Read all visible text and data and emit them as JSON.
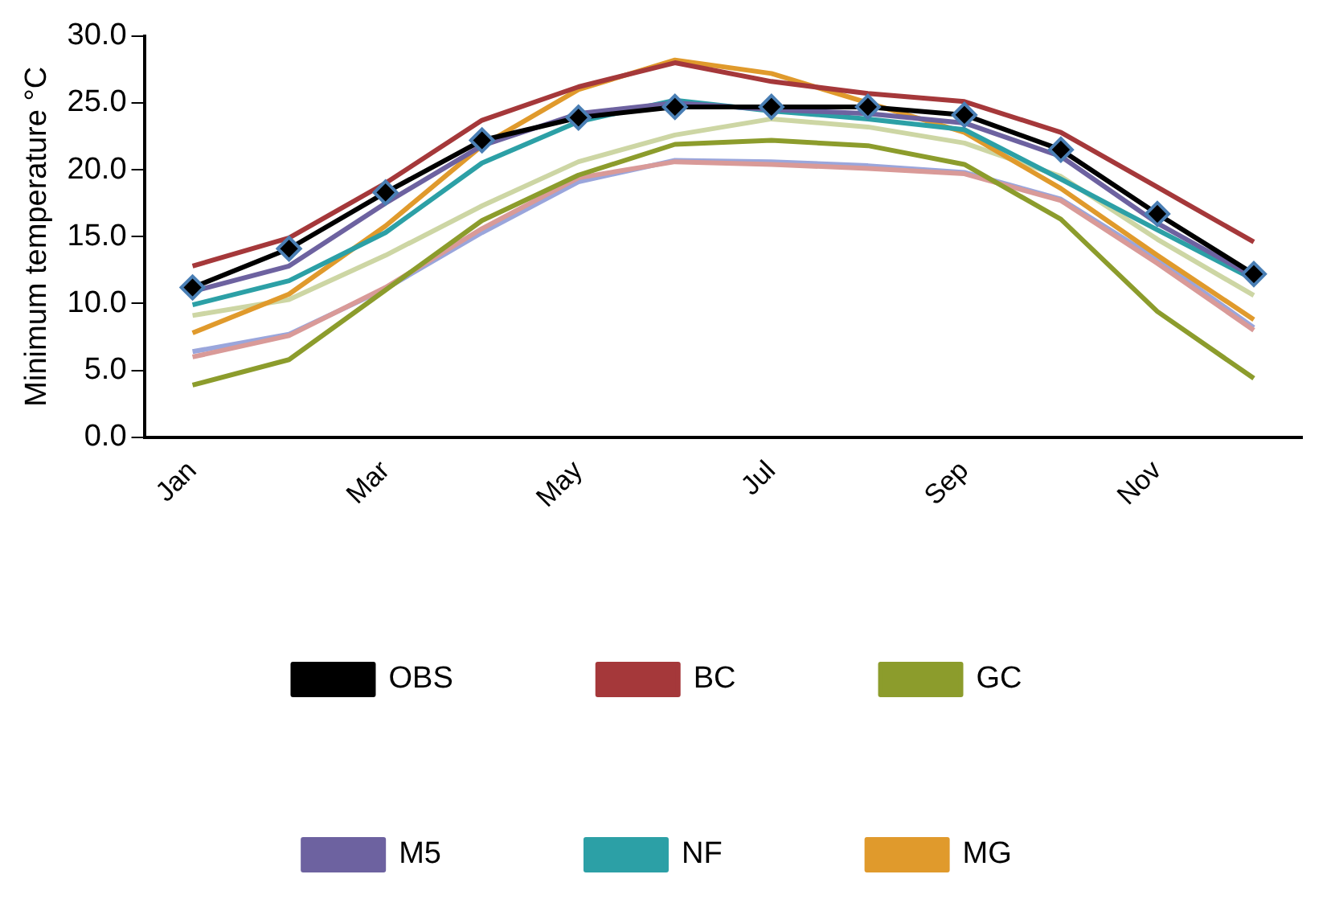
{
  "chart_data": {
    "type": "line",
    "ylabel": "Minimum temperature °C",
    "categories": [
      "Jan",
      null,
      "Mar",
      null,
      "May",
      null,
      "Jul",
      null,
      "Sep",
      null,
      "Nov",
      null
    ],
    "ylim": [
      0,
      30
    ],
    "yticks": [
      {
        "value": 0,
        "label": "0.0"
      },
      {
        "value": 5,
        "label": "5.0"
      },
      {
        "value": 10,
        "label": "10.0"
      },
      {
        "value": 15,
        "label": "15.0"
      },
      {
        "value": 20,
        "label": "20.0"
      },
      {
        "value": 25,
        "label": "25.0"
      },
      {
        "value": 30,
        "label": "30.0"
      }
    ],
    "grid": false,
    "legend": "bottom",
    "line_style": "solid",
    "series": [
      {
        "name": "OBS",
        "color": "#000000",
        "marker": "diamond",
        "values": [
          11.2,
          14.1,
          18.3,
          22.2,
          23.9,
          24.7,
          24.7,
          24.7,
          24.1,
          21.5,
          16.7,
          12.2
        ]
      },
      {
        "name": "BC",
        "color": "#a5383a",
        "marker": "none",
        "values": [
          12.8,
          14.9,
          19.0,
          23.7,
          26.2,
          28.0,
          26.6,
          25.7,
          25.1,
          22.8,
          18.7,
          14.6
        ]
      },
      {
        "name": "GC",
        "color": "#8c9c2c",
        "marker": "none",
        "values": [
          3.9,
          5.8,
          11.0,
          16.2,
          19.6,
          21.9,
          22.2,
          21.8,
          20.4,
          16.3,
          9.4,
          4.4
        ]
      },
      {
        "name": "M5",
        "color": "#6d62a0",
        "marker": "none",
        "values": [
          10.9,
          12.8,
          17.5,
          21.8,
          24.2,
          25.0,
          24.5,
          24.2,
          23.5,
          21.0,
          16.0,
          12.0
        ]
      },
      {
        "name": "NF",
        "color": "#2ca0a6",
        "marker": "none",
        "values": [
          9.9,
          11.7,
          15.3,
          20.5,
          23.6,
          25.2,
          24.4,
          23.8,
          23.0,
          19.3,
          15.5,
          11.8
        ]
      },
      {
        "name": "MG",
        "color": "#e09a2c",
        "marker": "none",
        "values": [
          7.8,
          10.7,
          15.8,
          21.8,
          26.0,
          28.2,
          27.2,
          25.0,
          22.8,
          18.6,
          13.6,
          8.8
        ]
      },
      {
        "color": "#cdd6a4",
        "marker": "none",
        "values": [
          9.1,
          10.3,
          13.6,
          17.3,
          20.6,
          22.6,
          23.8,
          23.2,
          22.0,
          19.5,
          14.8,
          10.6
        ]
      },
      {
        "color": "#d99a98",
        "marker": "none",
        "values": [
          6.0,
          7.6,
          11.2,
          15.6,
          19.4,
          20.6,
          20.4,
          20.1,
          19.7,
          17.7,
          13.0,
          8.0
        ]
      },
      {
        "color": "#9aa6dc",
        "marker": "none",
        "values": [
          6.4,
          7.7,
          11.1,
          15.3,
          19.1,
          20.7,
          20.6,
          20.3,
          19.8,
          17.8,
          13.3,
          8.2
        ]
      }
    ]
  }
}
